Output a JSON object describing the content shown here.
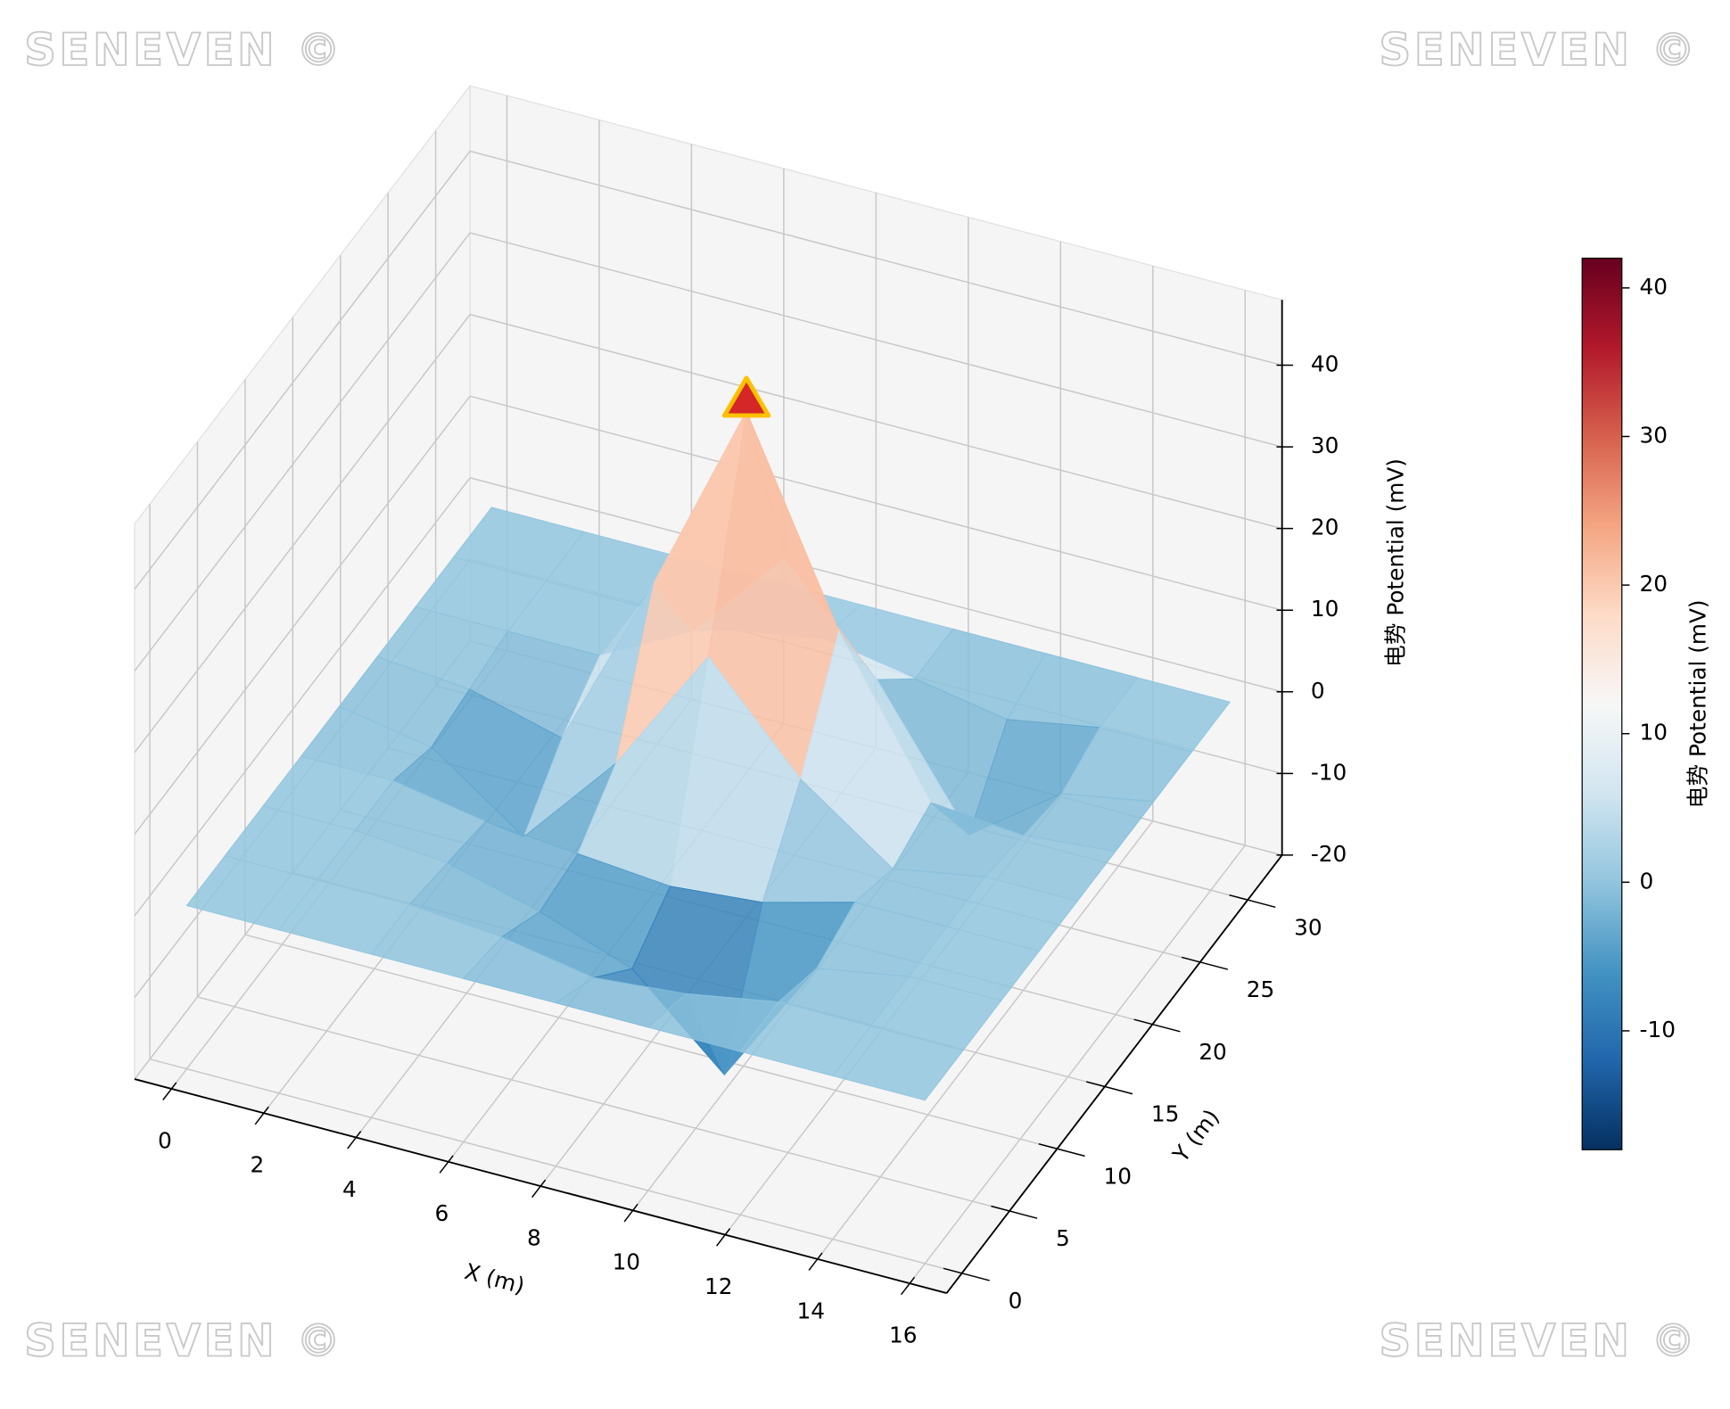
{
  "chart_data": {
    "type": "surface3d",
    "watermark": "SENEVEN ©",
    "xlabel": "X (m)",
    "ylabel": "Y (m)",
    "zlabel": "电势 Potential (mV)",
    "colorbar_label": "电势 Potential (mV)",
    "colormap": "RdBu_r",
    "x": [
      0,
      2,
      4,
      6,
      8,
      10,
      12,
      14,
      16
    ],
    "y": [
      0,
      4,
      8,
      12,
      16,
      20,
      24,
      28,
      32
    ],
    "z": [
      [
        0,
        0,
        0,
        0,
        0,
        0,
        0,
        0,
        0
      ],
      [
        0,
        0,
        0,
        -1,
        -3,
        -2,
        0,
        0,
        0
      ],
      [
        0,
        0,
        -1,
        -4,
        -8,
        -18,
        -2,
        0,
        0
      ],
      [
        0,
        0,
        -2,
        -3,
        -4,
        -3,
        0,
        0,
        0
      ],
      [
        0,
        -2,
        -10,
        2,
        18,
        6,
        -2,
        0,
        0
      ],
      [
        0,
        -1,
        -4,
        18,
        42,
        18,
        0,
        -1,
        0
      ],
      [
        0,
        0,
        0,
        6,
        18,
        6,
        -10,
        -2,
        0
      ],
      [
        0,
        0,
        0,
        0,
        2,
        0,
        -2,
        0,
        0
      ],
      [
        0,
        0,
        0,
        0,
        0,
        0,
        0,
        0,
        0
      ]
    ],
    "peak_marker": {
      "row": 5,
      "col": 4,
      "color": "#d62728",
      "edgecolor": "#ffc000"
    },
    "xlim": [
      -0.8,
      16.8
    ],
    "ylim": [
      -1.6,
      33.6
    ],
    "zlim": [
      -20,
      48
    ],
    "xticks": [
      0,
      2,
      4,
      6,
      8,
      10,
      12,
      14,
      16
    ],
    "yticks": [
      0,
      5,
      10,
      15,
      20,
      25,
      30
    ],
    "zticks": [
      -20,
      -10,
      0,
      10,
      20,
      30,
      40
    ],
    "clim": [
      -18,
      42
    ],
    "cticks": [
      -10,
      0,
      10,
      20,
      30,
      40
    ],
    "grid": true
  }
}
